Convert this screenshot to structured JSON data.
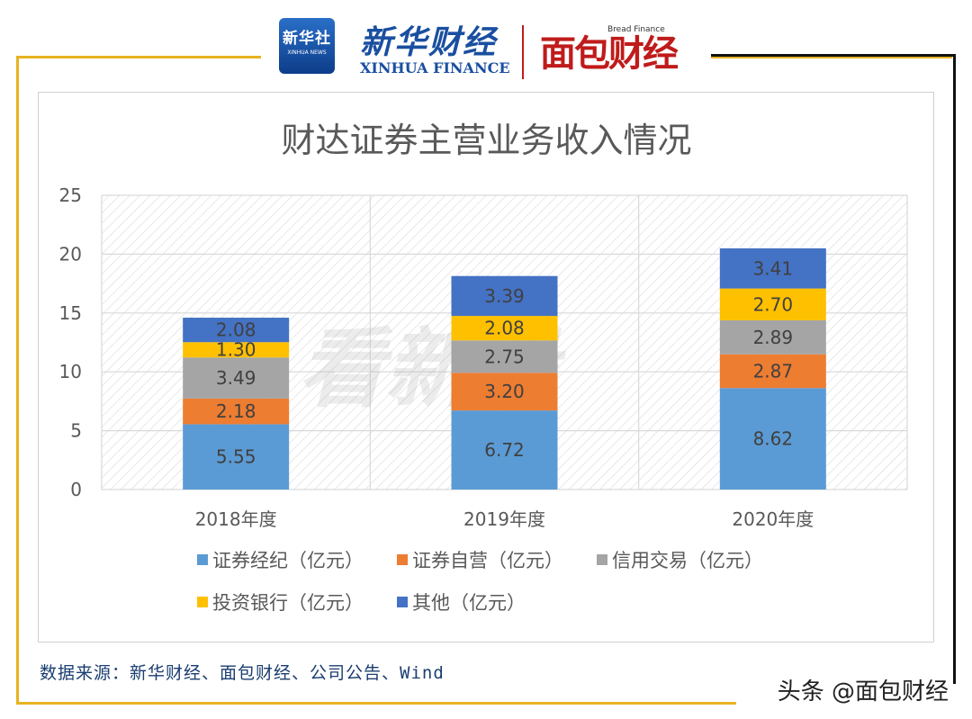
{
  "header": {
    "xinhua_badge_cn": "新华社",
    "xinhua_badge_en": "XINHUA NEWS",
    "xinhua_finance_cn": "新华财经",
    "xinhua_finance_en": "XINHUA FINANCE",
    "bread_finance_en": "Bread Finance",
    "bread_finance_cn": "面包财经"
  },
  "background_watermark": "看新股",
  "source_note": "数据来源：新华财经、面包财经、公司公告、Wind",
  "corner_watermark": "头条 @面包财经",
  "colors": {
    "frame_gold": "#e8b321",
    "frame_dark": "#111111",
    "text_dark": "#595959"
  },
  "chart_data": {
    "type": "bar",
    "stacked": true,
    "title": "财达证券主营业务收入情况",
    "categories": [
      "2018年度",
      "2019年度",
      "2020年度"
    ],
    "series": [
      {
        "name": "证券经纪（亿元）",
        "color": "#5b9bd5",
        "values": [
          5.55,
          6.72,
          8.62
        ]
      },
      {
        "name": "证券自营（亿元）",
        "color": "#ed7d31",
        "values": [
          2.18,
          3.2,
          2.87
        ]
      },
      {
        "name": "信用交易（亿元）",
        "color": "#a5a5a5",
        "values": [
          3.49,
          2.75,
          2.89
        ]
      },
      {
        "name": "投资银行（亿元）",
        "color": "#ffc000",
        "values": [
          1.3,
          2.08,
          2.7
        ]
      },
      {
        "name": "其他（亿元）",
        "color": "#4472c4",
        "values": [
          2.08,
          3.39,
          3.41
        ]
      }
    ],
    "yticks": [
      "0",
      "5",
      "10",
      "15",
      "20",
      "25"
    ],
    "ylim": [
      0,
      25
    ],
    "grid": true,
    "legend_position": "bottom"
  }
}
